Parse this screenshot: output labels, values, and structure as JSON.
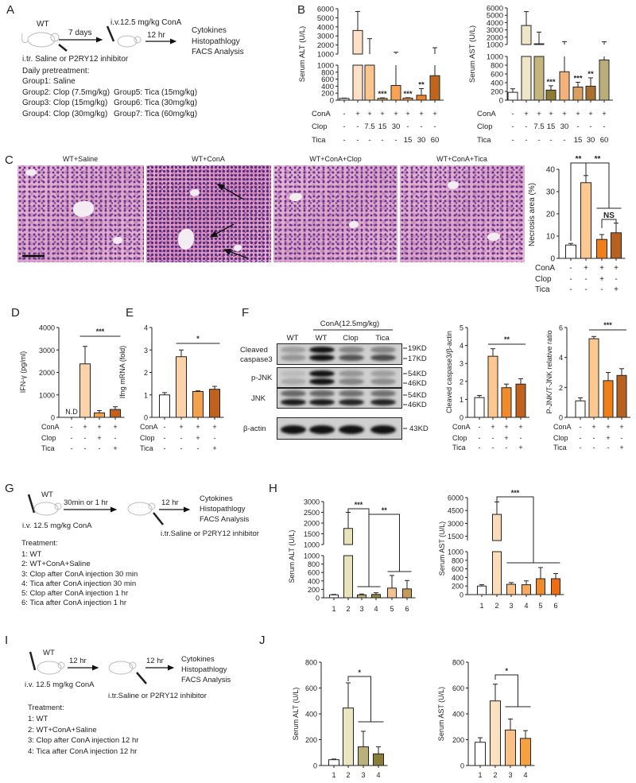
{
  "panel_labels": {
    "A": "A",
    "B": "B",
    "C": "C",
    "D": "D",
    "E": "E",
    "F": "F",
    "G": "G",
    "H": "H",
    "I": "I",
    "J": "J"
  },
  "panel_a": {
    "strain": "WT",
    "step1": "7 days",
    "injection": "i.v.12.5 mg/kg ConA",
    "step2": "12 hr",
    "readouts": [
      "Cytokines",
      "Histopathlogy",
      "FACS Analysis"
    ],
    "route": "i.tr. Saline or P2RY12 inhibitor",
    "pretreatment_title": "Daily pretreatment:",
    "groups_left": [
      "Group1: Saline",
      "Group2: Clop (7.5mg/kg)",
      "Group3: Clop (15mg/kg)",
      "Group4: Clop (30mg/kg)"
    ],
    "groups_right": [
      "Group5:  Tica (15mg/kg)",
      "Group6:  Tica  (30mg/kg)",
      "Group7:  Tica  (60mg/kg)"
    ]
  },
  "panel_c": {
    "titles": [
      "WT+Saline",
      "WT+ConA",
      "WT+ConA+Clop",
      "WT+ConA+Tica"
    ]
  },
  "panel_f_blot": {
    "header": "ConA(12.5mg/kg)",
    "lanes": [
      "WT",
      "WT",
      "Clop",
      "Tica"
    ],
    "rows": [
      {
        "label_lines": [
          "Cleaved",
          "caspase3"
        ],
        "markers": [
          "19KD",
          "17KD"
        ]
      },
      {
        "label_lines": [
          "p-JNK"
        ],
        "markers": [
          "54KD",
          "46KD"
        ]
      },
      {
        "label_lines": [
          "JNK"
        ],
        "markers": [
          "54KD",
          "46KD"
        ]
      },
      {
        "label_lines": [
          "β-actin"
        ],
        "markers": [
          "43KD"
        ]
      }
    ]
  },
  "panel_g": {
    "strain": "WT",
    "step1": "30min or 1 hr",
    "step2": "12 hr",
    "readouts": [
      "Cytokines",
      "Histopathlogy",
      "FACS Analysis"
    ],
    "injection": "i.v. 12.5 mg/kg ConA",
    "route": "i.tr.Saline or P2RY12 inhibitor",
    "treatment_title": "Treatment:",
    "treatments": [
      "1:  WT",
      "2:  WT+ConA+Saline",
      "3:  Clop after ConA injection 30 min",
      "4:  Tica after ConA injection 30 min",
      "5:  Clop after ConA injection 1 hr",
      "6:  Tica after ConA injection 1 hr"
    ]
  },
  "panel_i": {
    "strain": "WT",
    "step1": "12 hr",
    "step2": "12 hr",
    "readouts": [
      "Cytokines",
      "Histopathlogy",
      "FACS Analysis"
    ],
    "injection": "i.v. 12.5 mg/kg ConA",
    "route": "i.tr.Saline or P2RY12 inhibitor",
    "treatment_title": "Treatment:",
    "treatments": [
      "1:  WT",
      "2:  WT+ConA+Saline",
      "3:  Clop after ConA injection 12 hr",
      "4:  Tica after ConA injection 12 hr"
    ]
  },
  "chart_data": [
    {
      "id": "B_alt",
      "panel": "B",
      "type": "bar",
      "ylabel": "Serum ALT (U/L)",
      "broken_axis": {
        "lower": {
          "range": [
            0,
            1000
          ],
          "ticks": [
            "0",
            "200",
            "400",
            "600",
            "800",
            "1000"
          ]
        },
        "upper": {
          "range": [
            1000,
            6000
          ],
          "ticks": [
            "1000",
            "2000",
            "3000",
            "4000",
            "5000",
            "6000"
          ]
        }
      },
      "values": [
        50,
        3600,
        1000,
        50,
        420,
        60,
        140,
        700
      ],
      "errors": [
        10,
        2100,
        1700,
        15,
        780,
        10,
        190,
        1000
      ],
      "colors": [
        "#ffffff",
        "#fde0c5",
        "#fbc58d",
        "#f9b06a",
        "#f7a255",
        "#f39a50",
        "#f0802a",
        "#c0651e"
      ],
      "bar_labels": [
        "",
        "",
        "",
        "***",
        "",
        "***",
        "**",
        ""
      ],
      "conditions": [
        {
          "label": "ConA",
          "values": [
            "-",
            "+",
            "+",
            "+",
            "+",
            "+",
            "+",
            "+"
          ]
        },
        {
          "label": "Clop",
          "values": [
            "-",
            "-",
            "7.5",
            "15",
            "30",
            "-",
            "-",
            "-"
          ]
        },
        {
          "label": "Tica",
          "values": [
            "-",
            "-",
            "-",
            "-",
            "-",
            "15",
            "30",
            "60"
          ]
        }
      ]
    },
    {
      "id": "B_ast",
      "panel": "B",
      "type": "bar",
      "ylabel": "Serum AST (U/L)",
      "broken_axis": {
        "lower": {
          "range": [
            0,
            1000
          ],
          "ticks": [
            "0",
            "200",
            "400",
            "600",
            "800",
            "1000"
          ]
        },
        "upper": {
          "range": [
            1000,
            6000
          ],
          "ticks": [
            "1000",
            "2000",
            "3000",
            "4000",
            "5000",
            "6000"
          ]
        }
      },
      "values": [
        180,
        3600,
        1100,
        230,
        650,
        300,
        320,
        920
      ],
      "errors": [
        80,
        1900,
        1600,
        100,
        750,
        110,
        190,
        450
      ],
      "colors": [
        "#ffffff",
        "#ede6c8",
        "#c4b67c",
        "#8c7b30",
        "#f3b17c",
        "#d9a062",
        "#a86f2e",
        "#b9ad7a"
      ],
      "bar_labels": [
        "",
        "",
        "",
        "***",
        "",
        "***",
        "**",
        ""
      ],
      "conditions": [
        {
          "label": "ConA",
          "values": [
            "-",
            "+",
            "+",
            "+",
            "+",
            "+",
            "+",
            "+"
          ]
        },
        {
          "label": "Clop",
          "values": [
            "-",
            "-",
            "7.5",
            "15",
            "30",
            "-",
            "-",
            "-"
          ]
        },
        {
          "label": "Tica",
          "values": [
            "-",
            "-",
            "-",
            "-",
            "-",
            "15",
            "30",
            "60"
          ]
        }
      ]
    },
    {
      "id": "C",
      "panel": "C",
      "type": "bar",
      "ylabel": "Necrosis area (%)",
      "ylim": [
        0,
        40
      ],
      "yticks": [
        "0",
        "10",
        "20",
        "30",
        "40"
      ],
      "values": [
        6,
        34,
        8.5,
        11.5
      ],
      "errors": [
        0.7,
        3.2,
        2.2,
        4.3
      ],
      "colors": [
        "#ffffff",
        "#fcc88f",
        "#f07f17",
        "#b8611e"
      ],
      "conditions": [
        {
          "label": "ConA",
          "values": [
            "-",
            "+",
            "+",
            "+"
          ]
        },
        {
          "label": "Clop",
          "values": [
            "-",
            "-",
            "+",
            "-"
          ]
        },
        {
          "label": "Tica",
          "values": [
            "-",
            "-",
            "-",
            "+"
          ]
        }
      ],
      "significance": [
        {
          "type": "bracket",
          "left": [
            0
          ],
          "right": [
            1
          ],
          "label": "**"
        },
        {
          "type": "bracket",
          "left": [
            1
          ],
          "right": [
            2,
            3
          ],
          "label": "**"
        },
        {
          "type": "bracket",
          "left": [
            2
          ],
          "right": [
            3
          ],
          "label": "NS"
        }
      ]
    },
    {
      "id": "D",
      "panel": "D",
      "type": "bar",
      "ylabel": "IFN-γ (pg/ml)",
      "ylim": [
        0,
        4000
      ],
      "yticks": [
        "0",
        "1000",
        "2000",
        "3000",
        "4000"
      ],
      "values": [
        null,
        2380,
        200,
        350
      ],
      "errors": [
        null,
        780,
        100,
        120
      ],
      "value_labels": [
        "N.D",
        "",
        "",
        ""
      ],
      "colors": [
        "#ffffff",
        "#fcd3a8",
        "#f5a04a",
        "#c0621e"
      ],
      "conditions": [
        {
          "label": "ConA",
          "values": [
            "-",
            "+",
            "+",
            "+"
          ]
        },
        {
          "label": "Clop",
          "values": [
            "-",
            "-",
            "+",
            "-"
          ]
        },
        {
          "label": "Tica",
          "values": [
            "-",
            "-",
            "-",
            "+"
          ]
        }
      ],
      "significance": [
        {
          "type": "span",
          "bars": [
            1,
            3
          ],
          "label": "***"
        }
      ]
    },
    {
      "id": "E",
      "panel": "E",
      "type": "bar",
      "ylabel": "Ifng mRNA (fold)",
      "ylim": [
        0,
        4
      ],
      "yticks": [
        "0",
        "1",
        "2",
        "3",
        "4"
      ],
      "values": [
        1.0,
        2.7,
        1.15,
        1.25
      ],
      "errors": [
        0.1,
        0.3,
        0.03,
        0.13
      ],
      "colors": [
        "#ffffff",
        "#fcd3a8",
        "#f5a04a",
        "#c0621e"
      ],
      "conditions": [
        {
          "label": "ConA",
          "values": [
            "-",
            "+",
            "+",
            "+"
          ]
        },
        {
          "label": "Clop",
          "values": [
            "-",
            "-",
            "+",
            "-"
          ]
        },
        {
          "label": "Tica",
          "values": [
            "-",
            "-",
            "-",
            "+"
          ]
        }
      ],
      "significance": [
        {
          "type": "span",
          "bars": [
            1,
            3
          ],
          "label": "*"
        }
      ]
    },
    {
      "id": "F1",
      "panel": "F",
      "type": "bar",
      "ylabel": "Cleaved caspase3/β-actin",
      "ylim": [
        0,
        5
      ],
      "yticks": [
        "0",
        "1",
        "2",
        "3",
        "4",
        "5"
      ],
      "values": [
        1.1,
        3.4,
        1.65,
        1.85
      ],
      "errors": [
        0.12,
        0.42,
        0.2,
        0.3
      ],
      "colors": [
        "#ffffff",
        "#fcc88f",
        "#f08a2a",
        "#c0621e"
      ],
      "conditions": [
        {
          "label": "ConA",
          "values": [
            "-",
            "+",
            "+",
            "+"
          ]
        },
        {
          "label": "Clop",
          "values": [
            "-",
            "-",
            "+",
            "-"
          ]
        },
        {
          "label": "Tica",
          "values": [
            "-",
            "-",
            "-",
            "+"
          ]
        }
      ],
      "significance": [
        {
          "type": "span",
          "bars": [
            1,
            3
          ],
          "label": "**"
        }
      ]
    },
    {
      "id": "F2",
      "panel": "F",
      "type": "bar",
      "ylabel": "P-JNK/T-JNK relative ratio",
      "ylim": [
        0,
        6
      ],
      "yticks": [
        "0",
        "2",
        "4",
        "6"
      ],
      "values": [
        1.1,
        5.25,
        2.45,
        2.8
      ],
      "errors": [
        0.2,
        0.15,
        0.55,
        0.45
      ],
      "colors": [
        "#ffffff",
        "#fcc88f",
        "#f07f17",
        "#b8611e"
      ],
      "conditions": [
        {
          "label": "ConA",
          "values": [
            "-",
            "+",
            "+",
            "+"
          ]
        },
        {
          "label": "Clop",
          "values": [
            "-",
            "-",
            "+",
            "-"
          ]
        },
        {
          "label": "Tica",
          "values": [
            "-",
            "-",
            "-",
            "+"
          ]
        }
      ],
      "significance": [
        {
          "type": "span",
          "bars": [
            1,
            3
          ],
          "label": "***"
        }
      ]
    },
    {
      "id": "H1",
      "panel": "H",
      "type": "bar",
      "ylabel": "Serum ALT (U/L)",
      "broken_axis": {
        "lower": {
          "range": [
            0,
            1000
          ],
          "ticks": [
            "0",
            "200",
            "400",
            "600",
            "800",
            "1000"
          ]
        },
        "upper": {
          "range": [
            1000,
            3000
          ],
          "ticks": [
            "1000",
            "1500",
            "2000",
            "2500",
            "3000"
          ]
        }
      },
      "categories": [
        "1",
        "2",
        "3",
        "4",
        "5",
        "6"
      ],
      "values": [
        70,
        1750,
        70,
        80,
        230,
        210
      ],
      "errors": [
        10,
        750,
        20,
        40,
        300,
        200
      ],
      "colors": [
        "#ffffff",
        "#e8e3b8",
        "#bdb37a",
        "#8f8a3a",
        "#f2c292",
        "#c89a5a"
      ],
      "significance": [
        {
          "type": "bracket",
          "left": [
            1
          ],
          "right": [
            2,
            3
          ],
          "label": "***"
        },
        {
          "type": "bracket",
          "left": [
            2,
            3
          ],
          "right": [
            4,
            5
          ],
          "label": "**"
        }
      ]
    },
    {
      "id": "H2",
      "panel": "H",
      "type": "bar",
      "ylabel": "Serum AST (U/L)",
      "broken_axis": {
        "lower": {
          "range": [
            0,
            1000
          ],
          "ticks": [
            "0",
            "200",
            "400",
            "600",
            "800",
            "1000"
          ]
        },
        "upper": {
          "range": [
            1000,
            6000
          ],
          "ticks": [
            "1500",
            "3000",
            "4500",
            "6000"
          ]
        }
      },
      "categories": [
        "1",
        "2",
        "3",
        "4",
        "5",
        "6"
      ],
      "values": [
        200,
        4050,
        240,
        230,
        370,
        370
      ],
      "errors": [
        30,
        1450,
        40,
        90,
        260,
        120
      ],
      "colors": [
        "#ffffff",
        "#fcdcb8",
        "#f9c088",
        "#f7a85a",
        "#f38a2a",
        "#ee6d12"
      ],
      "significance": [
        {
          "type": "bracket",
          "left": [
            1
          ],
          "right": [
            2,
            3,
            4,
            5
          ],
          "label": "***"
        }
      ]
    },
    {
      "id": "J1",
      "panel": "J",
      "type": "bar",
      "ylabel": "Serum ALT (U/L)",
      "ylim": [
        0,
        800
      ],
      "yticks": [
        "0",
        "200",
        "400",
        "600",
        "800"
      ],
      "categories": [
        "1",
        "2",
        "3",
        "4"
      ],
      "values": [
        45,
        445,
        145,
        90
      ],
      "errors": [
        5,
        195,
        120,
        55
      ],
      "colors": [
        "#ffffff",
        "#ebe6c2",
        "#bcb07a",
        "#8a7d3a"
      ],
      "significance": [
        {
          "type": "bracket",
          "left": [
            1
          ],
          "right": [
            2,
            3
          ],
          "label": "*"
        }
      ]
    },
    {
      "id": "J2",
      "panel": "J",
      "type": "bar",
      "ylabel": "Serum AST (U/L)",
      "ylim": [
        0,
        800
      ],
      "yticks": [
        "0",
        "200",
        "400",
        "600",
        "800"
      ],
      "categories": [
        "1",
        "2",
        "3",
        "4"
      ],
      "values": [
        180,
        500,
        275,
        210
      ],
      "errors": [
        35,
        130,
        85,
        60
      ],
      "colors": [
        "#ffffff",
        "#fde0bf",
        "#f9c088",
        "#f6a040"
      ],
      "significance": [
        {
          "type": "bracket",
          "left": [
            1
          ],
          "right": [
            2,
            3
          ],
          "label": "*"
        }
      ]
    }
  ]
}
